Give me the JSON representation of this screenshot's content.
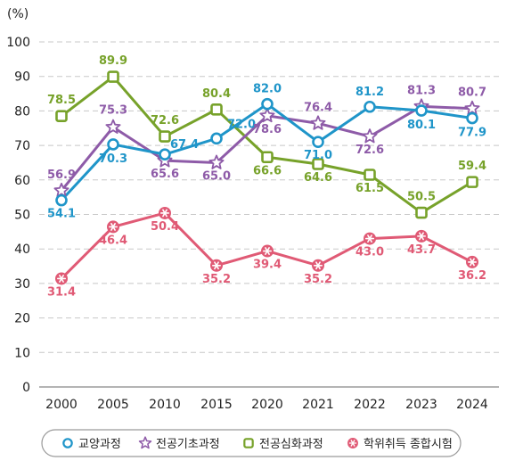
{
  "chart_data": {
    "type": "line",
    "ylabel": "(%)",
    "categories": [
      "2000",
      "2005",
      "2010",
      "2015",
      "2020",
      "2021",
      "2022",
      "2023",
      "2024"
    ],
    "ylim": [
      0,
      100
    ],
    "yticks": [
      0,
      10,
      20,
      30,
      40,
      50,
      60,
      70,
      80,
      90,
      100
    ],
    "grid": true,
    "legend_position": "bottom",
    "series": [
      {
        "name": "교양과정",
        "color": "#1f95c9",
        "marker": "circle",
        "values": [
          54.1,
          70.3,
          67.4,
          72.0,
          82.0,
          71.0,
          81.2,
          80.1,
          77.9
        ]
      },
      {
        "name": "전공기초과정",
        "color": "#8e5ba8",
        "marker": "star",
        "values": [
          56.9,
          75.3,
          65.6,
          65.0,
          78.6,
          76.4,
          72.6,
          81.3,
          80.7
        ]
      },
      {
        "name": "전공심화과정",
        "color": "#77a22a",
        "marker": "square",
        "values": [
          78.5,
          89.9,
          72.6,
          80.4,
          66.6,
          64.6,
          61.5,
          50.5,
          59.4
        ]
      },
      {
        "name": "학위취득 종합시험",
        "color": "#e05a75",
        "marker": "asterisk",
        "values": [
          31.4,
          46.4,
          50.4,
          35.2,
          39.4,
          35.2,
          43.0,
          43.7,
          36.2
        ]
      }
    ]
  }
}
